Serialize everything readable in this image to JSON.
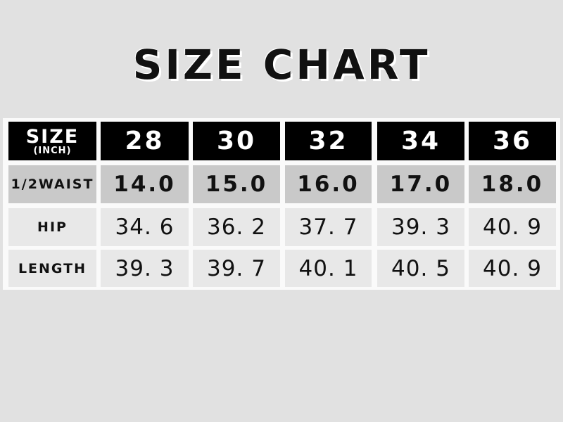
{
  "title": "SIZE CHART",
  "table": {
    "header_label": "SIZE",
    "header_unit": "(INCH)",
    "sizes": [
      "28",
      "30",
      "32",
      "34",
      "36"
    ],
    "rows": [
      {
        "label": "1/2WAIST",
        "values": [
          "14.0",
          "15.0",
          "16.0",
          "17.0",
          "18.0"
        ]
      },
      {
        "label": "HIP",
        "values": [
          "34. 6",
          "36. 2",
          "37. 7",
          "39. 3",
          "40. 9"
        ]
      },
      {
        "label": "LENGTH",
        "values": [
          "39. 3",
          "39. 7",
          "40. 1",
          "40. 5",
          "40. 9"
        ]
      }
    ]
  },
  "colors": {
    "header_bg": "#000000",
    "waist_row_bg": "#c9c9c9",
    "row_bg": "#e8e8e8",
    "page_bg": "#e1e1e1"
  }
}
